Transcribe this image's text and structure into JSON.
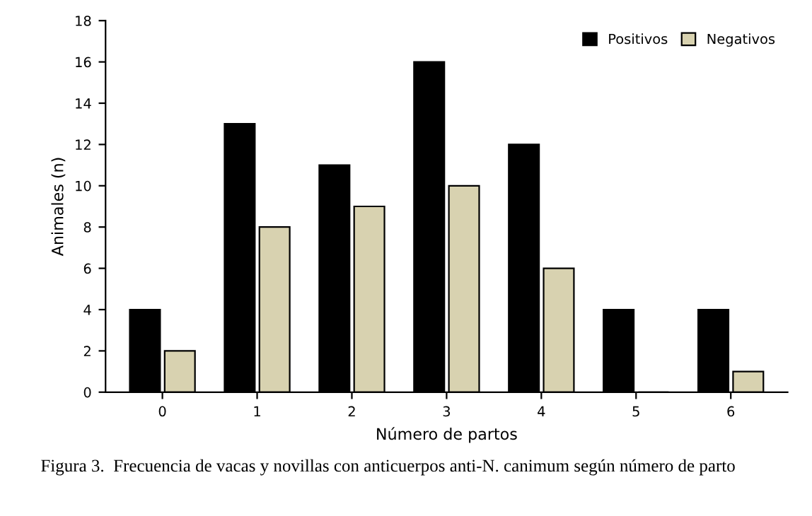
{
  "chart_data": {
    "type": "bar",
    "xlabel": "Número de partos",
    "ylabel": "Animales (n)",
    "categories": [
      "0",
      "1",
      "2",
      "3",
      "4",
      "5",
      "6"
    ],
    "series": [
      {
        "name": "Positivos",
        "color": "#000000",
        "values": [
          4,
          13,
          11,
          16,
          12,
          4,
          4
        ]
      },
      {
        "name": "Negativos",
        "color": "#d8d2b0",
        "values": [
          2,
          8,
          9,
          10,
          6,
          0,
          1
        ]
      }
    ],
    "ylim": [
      0,
      18
    ],
    "yticks": [
      0,
      2,
      4,
      6,
      8,
      10,
      12,
      14,
      16,
      18
    ],
    "grid": false,
    "legend": "top right",
    "annotations": [
      "Figura 3.  Frecuencia de vacas y novillas con anticuerpos anti-N. canimum según número de parto"
    ]
  }
}
